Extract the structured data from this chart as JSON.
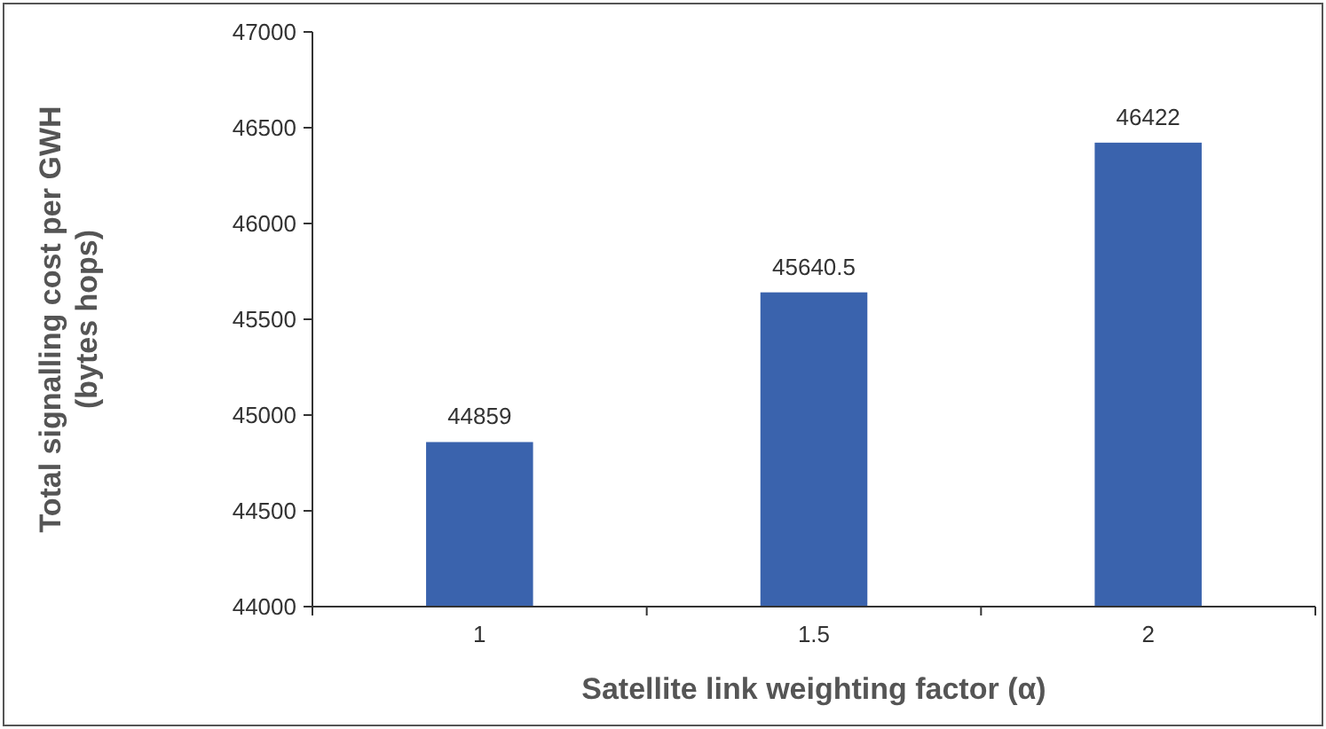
{
  "chart_data": {
    "type": "bar",
    "xlabel": "Satellite link weighting factor (α)",
    "ylabel": "Total signalling cost per GWH\n(bytes hops)",
    "categories": [
      "1",
      "1.5",
      "2"
    ],
    "values": [
      44859,
      45640.5,
      46422
    ],
    "color": "#3a63ad",
    "ylim": [
      44000,
      47000
    ],
    "yticks": [
      44000,
      44500,
      45000,
      45500,
      46000,
      46500,
      47000
    ],
    "data_labels": true,
    "grid": false
  }
}
